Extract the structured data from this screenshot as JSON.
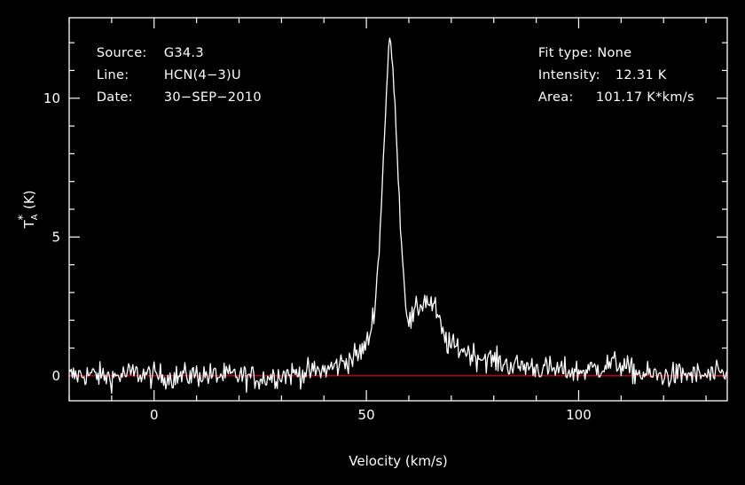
{
  "info_left": [
    {
      "label": "Source:",
      "value": "G34.3"
    },
    {
      "label": "Line:",
      "value": "HCN(4−3)U"
    },
    {
      "label": "Date:",
      "value": "30−SEP−2010"
    }
  ],
  "info_right": [
    {
      "label": "Fit type:",
      "value": "None"
    },
    {
      "label": "Intensity:",
      "value": "12.31 K"
    },
    {
      "label": "Area:",
      "value": "101.17 K*km/s"
    }
  ],
  "colors": {
    "background": "#000000",
    "axes": "#ffffff",
    "spectrum": "#ffffff",
    "baseline": "#ff0000"
  },
  "chart_data": {
    "type": "line",
    "title": "",
    "xlabel": "Velocity (km/s)",
    "ylabel_main": "T",
    "ylabel_sup": "*",
    "ylabel_sub": "A",
    "ylabel_unit": "(K)",
    "xlim": [
      -20,
      135
    ],
    "ylim": [
      -0.9,
      12.9
    ],
    "xticks": [
      0,
      50,
      100
    ],
    "xtick_labels": [
      "0",
      "50",
      "100"
    ],
    "yticks": [
      0,
      5,
      10
    ],
    "ytick_labels": [
      "0",
      "5",
      "10"
    ],
    "baseline_y": 0,
    "peak_velocity": 55.5,
    "peak_value": 12.31,
    "series": [
      {
        "x": [
          -20,
          -15,
          -10,
          -5,
          0,
          5,
          10,
          15,
          20,
          25,
          30,
          35,
          38,
          40,
          42,
          44,
          46,
          48,
          50,
          51,
          52,
          53,
          54,
          55,
          55.5,
          56,
          57,
          58,
          59,
          60,
          61,
          62,
          63,
          64,
          65,
          66,
          67,
          68,
          69,
          70,
          72,
          74,
          76,
          78,
          80,
          82,
          85,
          88,
          90,
          95,
          100,
          105,
          108,
          110,
          112,
          115,
          120,
          125,
          130,
          135
        ],
        "y": [
          0.0,
          0.05,
          -0.05,
          0.1,
          0.0,
          -0.05,
          0.05,
          0.0,
          0.0,
          -0.1,
          0.05,
          0.1,
          0.15,
          0.2,
          0.3,
          0.45,
          0.6,
          0.75,
          1.1,
          1.6,
          2.6,
          4.5,
          7.8,
          11.0,
          12.2,
          11.6,
          9.0,
          5.5,
          3.1,
          1.9,
          2.1,
          2.4,
          2.6,
          2.75,
          2.6,
          2.5,
          2.0,
          1.5,
          1.2,
          1.05,
          1.0,
          0.85,
          0.7,
          0.65,
          0.55,
          0.45,
          0.35,
          0.35,
          0.3,
          0.2,
          0.15,
          0.3,
          0.45,
          0.4,
          0.2,
          0.05,
          0.0,
          0.05,
          0.0,
          0.05
        ]
      }
    ]
  }
}
